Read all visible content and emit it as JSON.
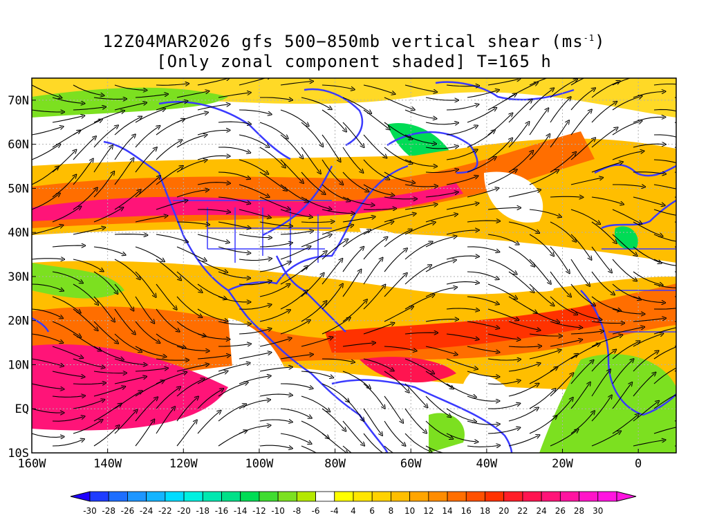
{
  "title": {
    "line1_prefix": "12Z04MAR2026 gfs 500−850mb vertical shear (ms",
    "line1_sup": "-1",
    "line1_suffix": ")",
    "line2": "[Only zonal component shaded] T=165 h"
  },
  "axes": {
    "lon_labels": [
      {
        "lon": -160,
        "label": "160W"
      },
      {
        "lon": -140,
        "label": "140W"
      },
      {
        "lon": -120,
        "label": "120W"
      },
      {
        "lon": -100,
        "label": "100W"
      },
      {
        "lon": -80,
        "label": "80W"
      },
      {
        "lon": -60,
        "label": "60W"
      },
      {
        "lon": -40,
        "label": "40W"
      },
      {
        "lon": -20,
        "label": "20W"
      },
      {
        "lon": 0,
        "label": "0"
      }
    ],
    "lat_labels": [
      {
        "lat": 70,
        "label": "70N"
      },
      {
        "lat": 60,
        "label": "60N"
      },
      {
        "lat": 50,
        "label": "50N"
      },
      {
        "lat": 40,
        "label": "40N"
      },
      {
        "lat": 30,
        "label": "30N"
      },
      {
        "lat": 20,
        "label": "20N"
      },
      {
        "lat": 10,
        "label": "10N"
      },
      {
        "lat": 0,
        "label": "EQ"
      },
      {
        "lat": -10,
        "label": "10S"
      }
    ],
    "lon_range": [
      -160,
      10
    ],
    "lat_range": [
      -10,
      75
    ]
  },
  "colorbar": {
    "labels": [
      "-30",
      "-28",
      "-26",
      "-24",
      "-22",
      "-20",
      "-18",
      "-16",
      "-14",
      "-12",
      "-10",
      "-8",
      "-6",
      "-4",
      "4",
      "6",
      "8",
      "10",
      "12",
      "14",
      "16",
      "18",
      "20",
      "22",
      "24",
      "26",
      "28",
      "30"
    ],
    "colors": [
      "#1e00ff",
      "#1e3cff",
      "#1e6eff",
      "#1e96ff",
      "#14b4ff",
      "#00dcff",
      "#00f0e0",
      "#00e8b0",
      "#00e088",
      "#00dc55",
      "#40dc30",
      "#7ce020",
      "#b4e800",
      "#ffffff",
      "#ffff00",
      "#ffe600",
      "#ffd200",
      "#ffbe00",
      "#ffa500",
      "#ff8c00",
      "#ff6e00",
      "#ff5000",
      "#ff3200",
      "#ff1e28",
      "#ff1450",
      "#ff1478",
      "#ff14a0",
      "#ff14c8",
      "#ff14e0"
    ]
  },
  "map_colors": {
    "coast": "#3a3aff",
    "streamline": "#000000",
    "shear_low": "#ffff00",
    "shear_mid": "#ffbe00",
    "shear_high": "#ff6e00",
    "shear_max": "#ff1478",
    "shear_neg": "#7ce020"
  }
}
